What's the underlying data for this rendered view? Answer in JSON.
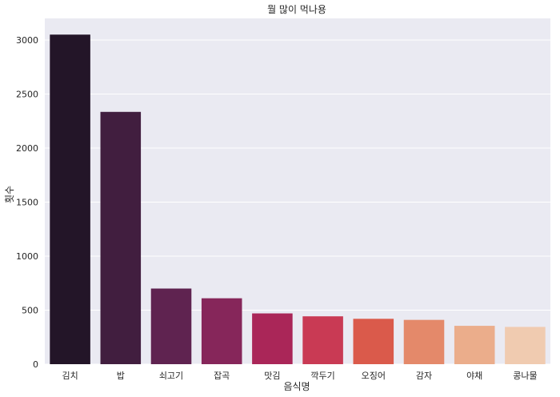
{
  "chart_data": {
    "type": "bar",
    "title": "뭘 많이 먹나용",
    "xlabel": "음식명",
    "ylabel": "횟수",
    "categories": [
      "김치",
      "밥",
      "쇠고기",
      "잡곡",
      "맛김",
      "깍두기",
      "오징어",
      "감자",
      "야채",
      "콩나물"
    ],
    "values": [
      3050,
      2335,
      700,
      610,
      470,
      443,
      420,
      410,
      355,
      345
    ],
    "ylim": [
      0,
      3200
    ],
    "yticks": [
      0,
      500,
      1000,
      1500,
      2000,
      2500,
      3000
    ],
    "grid": true,
    "colors": [
      "#231528",
      "#411e3f",
      "#5f2350",
      "#86265a",
      "#aa2658",
      "#c93a54",
      "#da5a4b",
      "#e4896a",
      "#ebad8b",
      "#f0cbb0"
    ],
    "background": "#eaeaf2"
  }
}
